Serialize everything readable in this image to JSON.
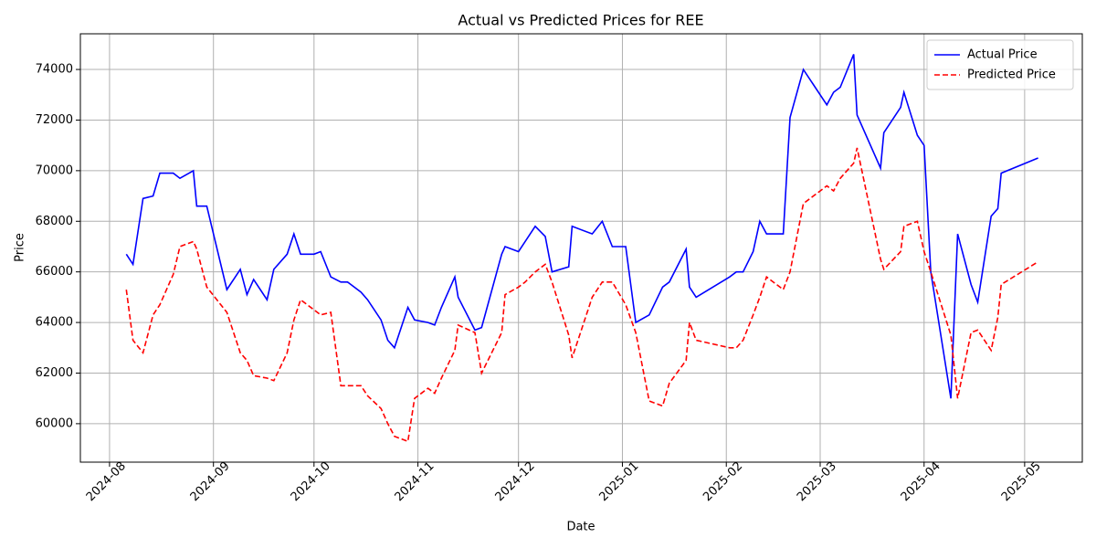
{
  "chart_data": {
    "type": "line",
    "title": "Actual vs Predicted Prices for REE",
    "x_label": "Date",
    "y_label": "Price",
    "x": [
      5,
      7,
      10,
      13,
      15,
      19,
      21,
      25,
      26,
      29,
      35,
      39,
      41,
      43,
      47,
      49,
      53,
      55,
      57,
      61,
      63,
      66,
      69,
      71,
      75,
      77,
      81,
      83,
      85,
      89,
      91,
      95,
      97,
      99,
      103,
      104,
      109,
      111,
      117,
      118,
      122,
      124,
      127,
      130,
      132,
      137,
      138,
      144,
      147,
      150,
      154,
      157,
      161,
      165,
      167,
      172,
      173,
      175,
      185,
      187,
      189,
      192,
      194,
      196,
      201,
      203,
      207,
      214,
      216,
      218,
      222,
      223,
      230,
      231,
      236,
      237,
      241,
      243,
      245,
      251,
      253,
      257,
      259,
      263,
      265,
      266,
      277
    ],
    "series": [
      {
        "name": "Actual Price",
        "color": "#0000ff",
        "dash": "none",
        "values": [
          66700,
          66300,
          68900,
          69000,
          69900,
          69900,
          69700,
          70000,
          68600,
          68600,
          65300,
          66100,
          65100,
          65700,
          64900,
          66100,
          66700,
          67500,
          66700,
          66700,
          66800,
          65800,
          65600,
          65600,
          65200,
          64900,
          64100,
          63300,
          63000,
          64600,
          64100,
          64000,
          63900,
          64600,
          65800,
          65000,
          63700,
          63800,
          66700,
          67000,
          66800,
          67200,
          67800,
          67400,
          66000,
          66200,
          67800,
          67500,
          68000,
          67000,
          67000,
          64000,
          64300,
          65400,
          65600,
          66900,
          65400,
          65000,
          65800,
          66000,
          66000,
          66800,
          68000,
          67500,
          67500,
          72100,
          74000,
          72600,
          73100,
          73300,
          74600,
          72200,
          70100,
          71500,
          72500,
          73100,
          71400,
          71000,
          66000,
          61000,
          67500,
          65500,
          64800,
          68200,
          68500,
          69900,
          70500
        ]
      },
      {
        "name": "Predicted Price",
        "color": "#ff0000",
        "dash": "6,3",
        "values": [
          65300,
          63300,
          62800,
          64300,
          64700,
          65900,
          67000,
          67200,
          66900,
          65400,
          64400,
          62800,
          62500,
          61900,
          61800,
          61700,
          62800,
          64100,
          64900,
          64500,
          64300,
          64400,
          61500,
          61500,
          61500,
          61100,
          60600,
          60000,
          59500,
          59300,
          61000,
          61400,
          61200,
          61800,
          62900,
          63900,
          63600,
          62000,
          63600,
          65100,
          65400,
          65600,
          66000,
          66300,
          65600,
          63500,
          62600,
          65000,
          65600,
          65600,
          64700,
          63600,
          60900,
          60700,
          61600,
          62500,
          64000,
          63300,
          63000,
          63000,
          63300,
          64300,
          65000,
          65800,
          65300,
          66000,
          68700,
          69400,
          69200,
          69700,
          70300,
          70900,
          66500,
          66100,
          66800,
          67800,
          68000,
          66800,
          66000,
          63500,
          61000,
          63600,
          63700,
          62900,
          64200,
          65500,
          66400
        ]
      }
    ],
    "xlim": [
      -8.7,
      290.2
    ],
    "ylim": [
      58480,
      75410
    ],
    "xticks": [
      {
        "value": 0,
        "label": "2024-08"
      },
      {
        "value": 31,
        "label": "2024-09"
      },
      {
        "value": 61,
        "label": "2024-10"
      },
      {
        "value": 92,
        "label": "2024-11"
      },
      {
        "value": 122,
        "label": "2024-12"
      },
      {
        "value": 153,
        "label": "2025-01"
      },
      {
        "value": 184,
        "label": "2025-02"
      },
      {
        "value": 212,
        "label": "2025-03"
      },
      {
        "value": 243,
        "label": "2025-04"
      },
      {
        "value": 273,
        "label": "2025-05"
      }
    ],
    "yticks": [
      60000,
      62000,
      64000,
      66000,
      68000,
      70000,
      72000,
      74000
    ],
    "grid": true,
    "legend": "upper right"
  }
}
